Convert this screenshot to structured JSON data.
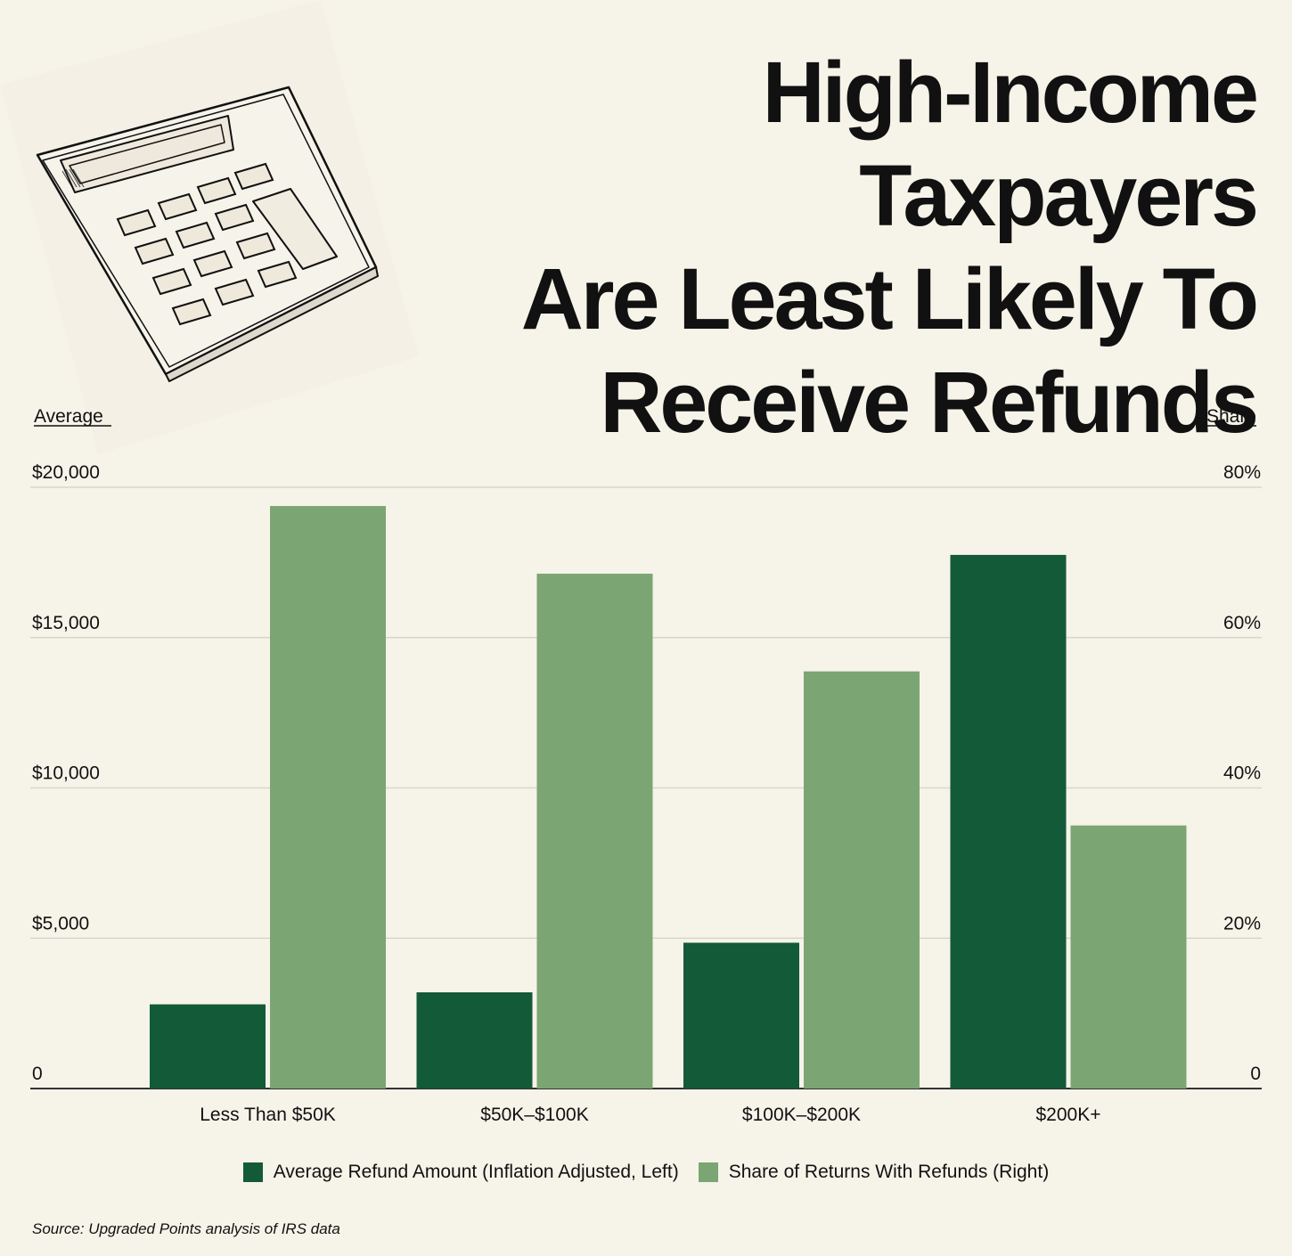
{
  "title_lines": [
    "High-Income Taxpayers",
    "Are Least Likely To",
    "Receive Refunds"
  ],
  "chart_data": {
    "type": "bar",
    "categories": [
      "Less Than $50K",
      "$50K–$100K",
      "$100K–$200K",
      "$200K+"
    ],
    "series": [
      {
        "name": "Average Refund Amount (Inflation Adjusted, Left)",
        "axis": "left",
        "values": [
          2800,
          3200,
          4850,
          17750
        ],
        "color": "#135a38"
      },
      {
        "name": "Share of Returns With Refunds (Right)",
        "axis": "right",
        "values": [
          77.5,
          68.5,
          55.5,
          35
        ],
        "color": "#7ba572"
      }
    ],
    "y_left": {
      "label": "Average",
      "ylim": [
        0,
        20000
      ],
      "ticks": [
        0,
        5000,
        10000,
        15000,
        20000
      ],
      "tick_labels": [
        "0",
        "$5,000",
        "$10,000",
        "$15,000",
        "$20,000"
      ]
    },
    "y_right": {
      "label": "Share",
      "ylim": [
        0,
        80
      ],
      "ticks": [
        0,
        20,
        40,
        60,
        80
      ],
      "tick_labels": [
        "0",
        "20%",
        "40%",
        "60%",
        "80%"
      ]
    },
    "grid": true,
    "legend_placement": "bottom-center"
  },
  "source": "Source: Upgraded Points analysis of IRS data",
  "icon": "calculator-icon"
}
